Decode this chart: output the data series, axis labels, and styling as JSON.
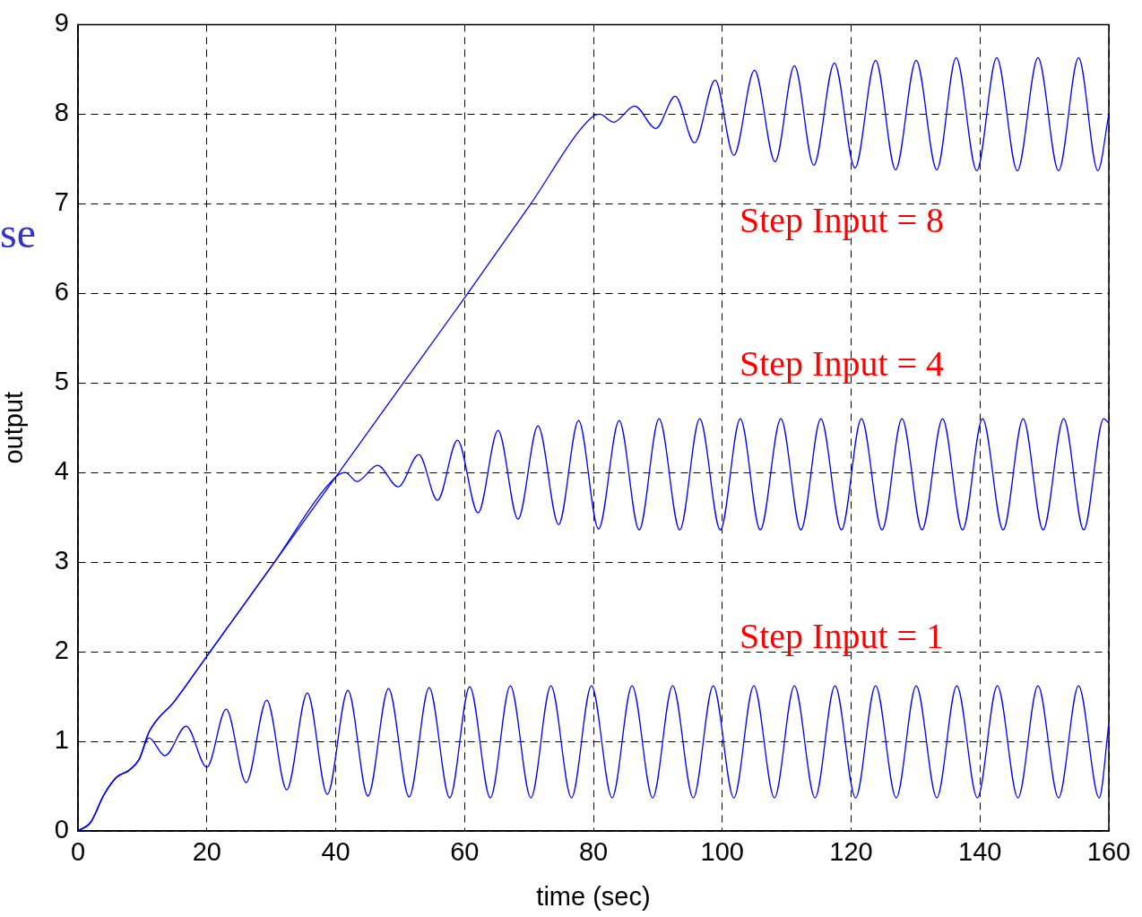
{
  "chart_data": {
    "type": "line",
    "xlabel": "time (sec)",
    "ylabel": "output",
    "xlim": [
      0,
      160
    ],
    "xticks": [
      0,
      20,
      40,
      60,
      80,
      100,
      120,
      140,
      160
    ],
    "ylim": [
      0,
      9
    ],
    "yticks": [
      0,
      1,
      2,
      3,
      4,
      5,
      6,
      7,
      8,
      9
    ],
    "grid": true,
    "legend": false,
    "marker": "none",
    "line_style": "solid",
    "annotations": [
      "Step Input = 8",
      "Step Input = 4",
      "Step Input = 1",
      "se"
    ],
    "series": [
      {
        "color": "#0000ff",
        "x": [
          0,
          2,
          4,
          6,
          8,
          9.5,
          11,
          13.5,
          16.8,
          20,
          23,
          26.1,
          29.3,
          32.4,
          35.6,
          38.7,
          41.9,
          45,
          48.2,
          51.4,
          54.5,
          57.7,
          60.8,
          64,
          67.1,
          70.3,
          73.4,
          76.6,
          79.7,
          82.9,
          86,
          89.2,
          92.3,
          95.5,
          98.6,
          101.8,
          104.9,
          108.1,
          111.2,
          114.4,
          117.5,
          120.7,
          123.8,
          127,
          130.1,
          133.3,
          136.4,
          139.6,
          142.7,
          145.9,
          149,
          152.2,
          155.3,
          158.5,
          160
        ],
        "values": [
          0,
          0.1,
          0.4,
          0.6,
          0.68,
          0.8,
          1.04,
          0.84,
          1.17,
          0.71,
          1.36,
          0.54,
          1.46,
          0.46,
          1.54,
          0.41,
          1.57,
          0.39,
          1.59,
          0.38,
          1.6,
          0.37,
          1.61,
          0.37,
          1.62,
          0.37,
          1.62,
          0.37,
          1.62,
          0.37,
          1.62,
          0.37,
          1.62,
          0.37,
          1.62,
          0.37,
          1.62,
          0.37,
          1.62,
          0.37,
          1.62,
          0.37,
          1.62,
          0.37,
          1.62,
          0.37,
          1.62,
          0.37,
          1.62,
          0.37,
          1.62,
          0.37,
          1.62,
          0.37,
          1.2
        ]
      },
      {
        "color": "#0000ff",
        "x": [
          0,
          2,
          4,
          6,
          8,
          9.5,
          11,
          15,
          20,
          30,
          40,
          41.5,
          43.3,
          46.5,
          49.7,
          52.9,
          55.8,
          58.9,
          62.1,
          65.2,
          68.3,
          71.4,
          74.6,
          77.7,
          80.8,
          84,
          87.1,
          90.2,
          93.4,
          96.5,
          99.7,
          102.8,
          105.9,
          109.1,
          112.2,
          115.3,
          118.5,
          121.6,
          124.8,
          127.9,
          131,
          134.2,
          137.3,
          140.4,
          143.6,
          146.7,
          149.8,
          153,
          156.1,
          159.2,
          160
        ],
        "values": [
          0,
          0.1,
          0.4,
          0.6,
          0.68,
          0.8,
          1.1,
          1.45,
          1.95,
          2.95,
          3.95,
          4,
          3.9,
          4.08,
          3.84,
          4.2,
          3.69,
          4.36,
          3.55,
          4.47,
          3.48,
          4.52,
          3.42,
          4.58,
          3.37,
          4.58,
          3.36,
          4.6,
          3.36,
          4.6,
          3.36,
          4.6,
          3.36,
          4.6,
          3.36,
          4.6,
          3.36,
          4.6,
          3.36,
          4.6,
          3.36,
          4.6,
          3.36,
          4.6,
          3.36,
          4.6,
          3.36,
          4.6,
          3.36,
          4.6,
          4.55
        ]
      },
      {
        "color": "#0000ff",
        "x": [
          0,
          2,
          4,
          6,
          8,
          9.5,
          11,
          15,
          20,
          30,
          40,
          50,
          60,
          70,
          80,
          81,
          83.1,
          86.4,
          89.7,
          92.7,
          95.7,
          98.9,
          101.8,
          105,
          108.2,
          111.2,
          114.2,
          117.4,
          120.6,
          123.8,
          126.9,
          130.1,
          133.3,
          136.3,
          139.5,
          142.6,
          145.8,
          149,
          152.2,
          155.3,
          158.3,
          160
        ],
        "values": [
          0,
          0.1,
          0.4,
          0.6,
          0.68,
          0.8,
          1.1,
          1.45,
          1.95,
          2.95,
          3.95,
          4.95,
          5.95,
          6.97,
          7.98,
          8,
          7.91,
          8.09,
          7.84,
          8.2,
          7.68,
          8.38,
          7.54,
          8.49,
          7.47,
          8.54,
          7.43,
          8.57,
          7.4,
          8.6,
          7.38,
          8.6,
          7.38,
          8.63,
          7.37,
          8.63,
          7.37,
          8.63,
          7.37,
          8.63,
          7.37,
          8
        ]
      }
    ]
  }
}
